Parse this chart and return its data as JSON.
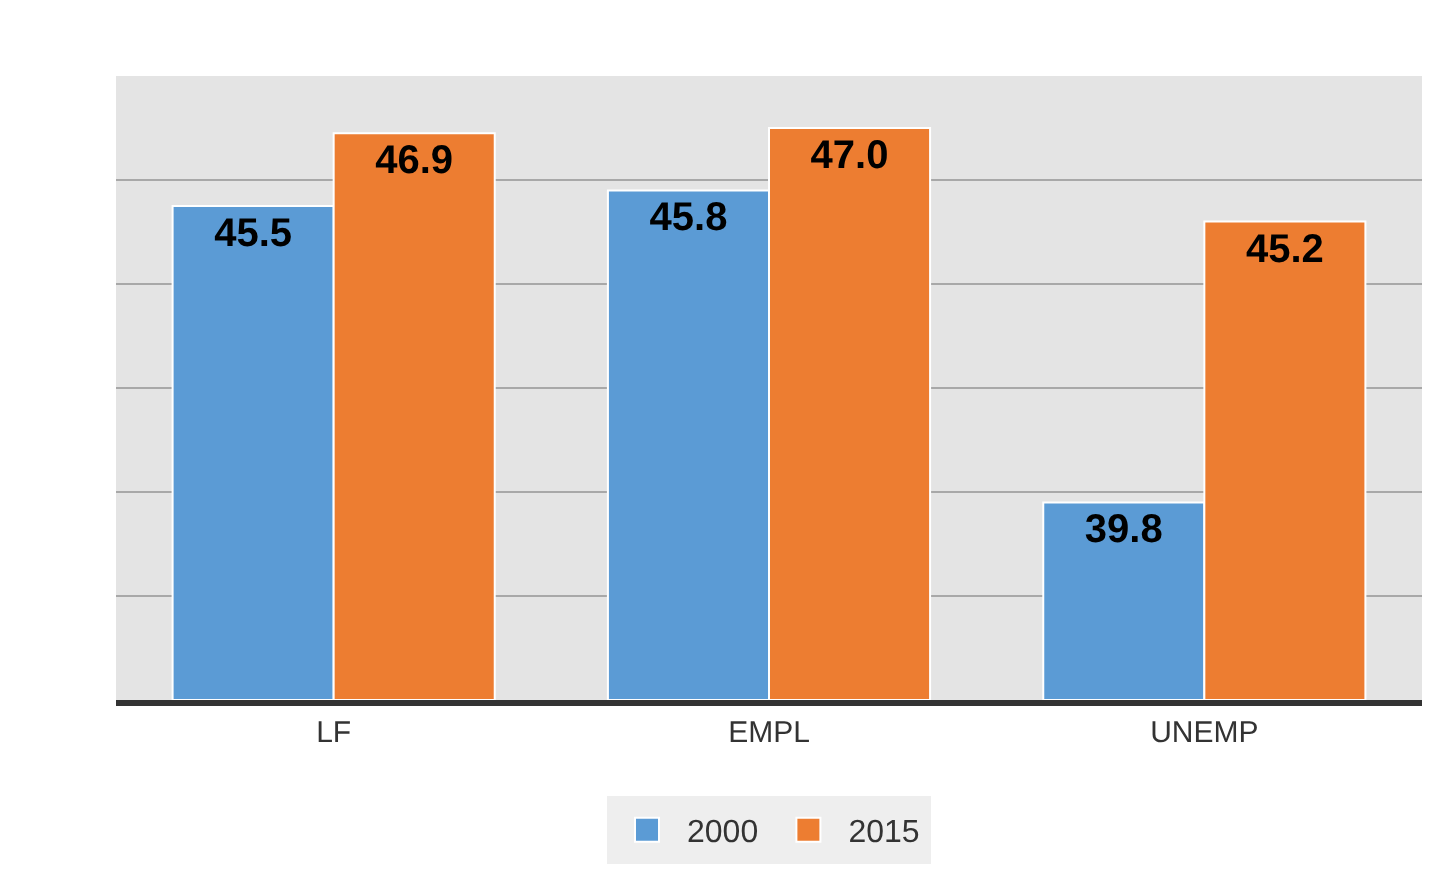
{
  "chart_data": {
    "type": "bar",
    "categories": [
      "LF",
      "EMPL",
      "UNEMP"
    ],
    "series": [
      {
        "name": "2000",
        "color": "#5b9bd5",
        "values": [
          45.5,
          45.8,
          39.8
        ],
        "value_labels": [
          "45.5",
          "45.8",
          "39.8"
        ]
      },
      {
        "name": "2015",
        "color": "#ed7d31",
        "values": [
          46.9,
          47.0,
          45.2
        ],
        "value_labels": [
          "46.9",
          "47.0",
          "45.2"
        ]
      }
    ],
    "ylim": [
      36,
      48
    ],
    "yticks": [
      {
        "value": 38,
        "label": null
      },
      {
        "value": 40,
        "label": null
      },
      {
        "value": 42,
        "label": null
      },
      {
        "value": 44,
        "label": null
      },
      {
        "value": 46,
        "label": null
      },
      {
        "value": 48,
        "label": null
      }
    ],
    "tick_labels": "x",
    "grid": "y",
    "legend": "bottom"
  }
}
